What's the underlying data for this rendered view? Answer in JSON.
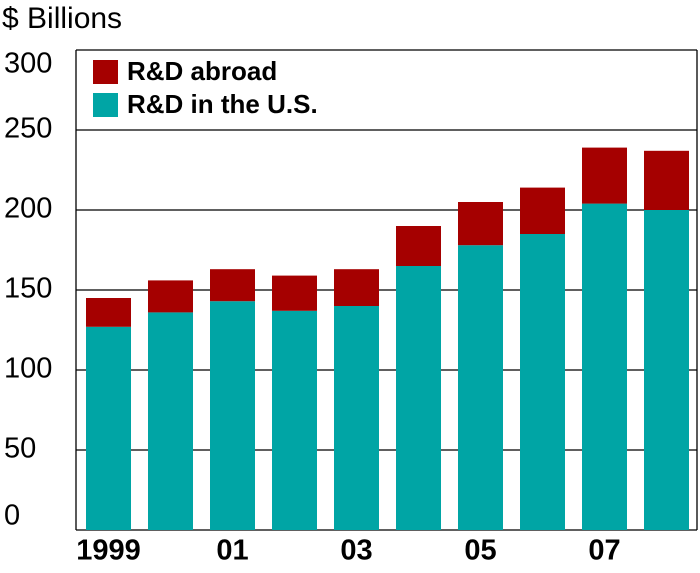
{
  "chart_data": {
    "type": "stacked-bar",
    "title": "$ Billions",
    "categories": [
      "1999",
      null,
      "01",
      null,
      "03",
      null,
      "05",
      null,
      "07",
      null
    ],
    "series": [
      {
        "name": "R&D in the U.S.",
        "color": "#00a5a5",
        "values": [
          127,
          136,
          143,
          137,
          140,
          165,
          178,
          185,
          204,
          200
        ]
      },
      {
        "name": "R&D abroad",
        "color": "#a50000",
        "values": [
          18,
          20,
          20,
          22,
          23,
          25,
          27,
          29,
          35,
          37
        ]
      }
    ],
    "ylim": [
      0,
      300
    ],
    "yticks": [
      0,
      50,
      100,
      150,
      200,
      250,
      300
    ],
    "grid": true
  }
}
